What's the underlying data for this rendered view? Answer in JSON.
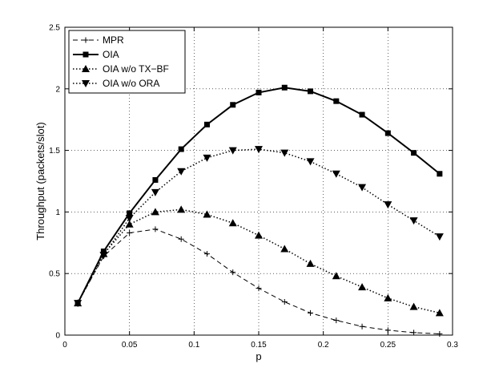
{
  "chart_data": {
    "type": "line",
    "xlabel": "p",
    "ylabel": "Throughput (packets/slot)",
    "xlim": [
      0,
      0.3
    ],
    "ylim": [
      0,
      2.5
    ],
    "x_ticks": [
      0,
      0.05,
      0.1,
      0.15,
      0.2,
      0.25,
      0.3
    ],
    "x_tick_labels": [
      "0",
      "0.05",
      "0.1",
      "0.15",
      "0.2",
      "0.25",
      "0.3"
    ],
    "y_ticks": [
      0,
      0.5,
      1,
      1.5,
      2,
      2.5
    ],
    "y_tick_labels": [
      "0",
      "0.5",
      "1",
      "1.5",
      "2",
      "2.5"
    ],
    "grid": true,
    "legend_position": "top-left",
    "x": [
      0.01,
      0.03,
      0.05,
      0.07,
      0.09,
      0.11,
      0.13,
      0.15,
      0.17,
      0.19,
      0.21,
      0.23,
      0.25,
      0.27,
      0.29
    ],
    "series": [
      {
        "name": "MPR",
        "line": "dashed",
        "marker": "plus",
        "values": [
          0.26,
          0.64,
          0.83,
          0.86,
          0.78,
          0.66,
          0.51,
          0.38,
          0.27,
          0.18,
          0.12,
          0.07,
          0.04,
          0.02,
          0.01
        ]
      },
      {
        "name": "OIA",
        "line": "solid",
        "marker": "square",
        "values": [
          0.26,
          0.68,
          0.99,
          1.26,
          1.51,
          1.71,
          1.87,
          1.97,
          2.01,
          1.98,
          1.9,
          1.79,
          1.64,
          1.48,
          1.31
        ]
      },
      {
        "name": "OIA w/o TX−BF",
        "line": "dotted",
        "marker": "triangle-up",
        "values": [
          0.26,
          0.66,
          0.9,
          1.0,
          1.02,
          0.98,
          0.91,
          0.81,
          0.7,
          0.58,
          0.48,
          0.39,
          0.3,
          0.23,
          0.18
        ]
      },
      {
        "name": "OIA w/o ORA",
        "line": "dotted",
        "marker": "triangle-down",
        "values": [
          0.26,
          0.65,
          0.95,
          1.16,
          1.33,
          1.44,
          1.5,
          1.51,
          1.48,
          1.41,
          1.31,
          1.2,
          1.06,
          0.93,
          0.8
        ]
      }
    ]
  }
}
